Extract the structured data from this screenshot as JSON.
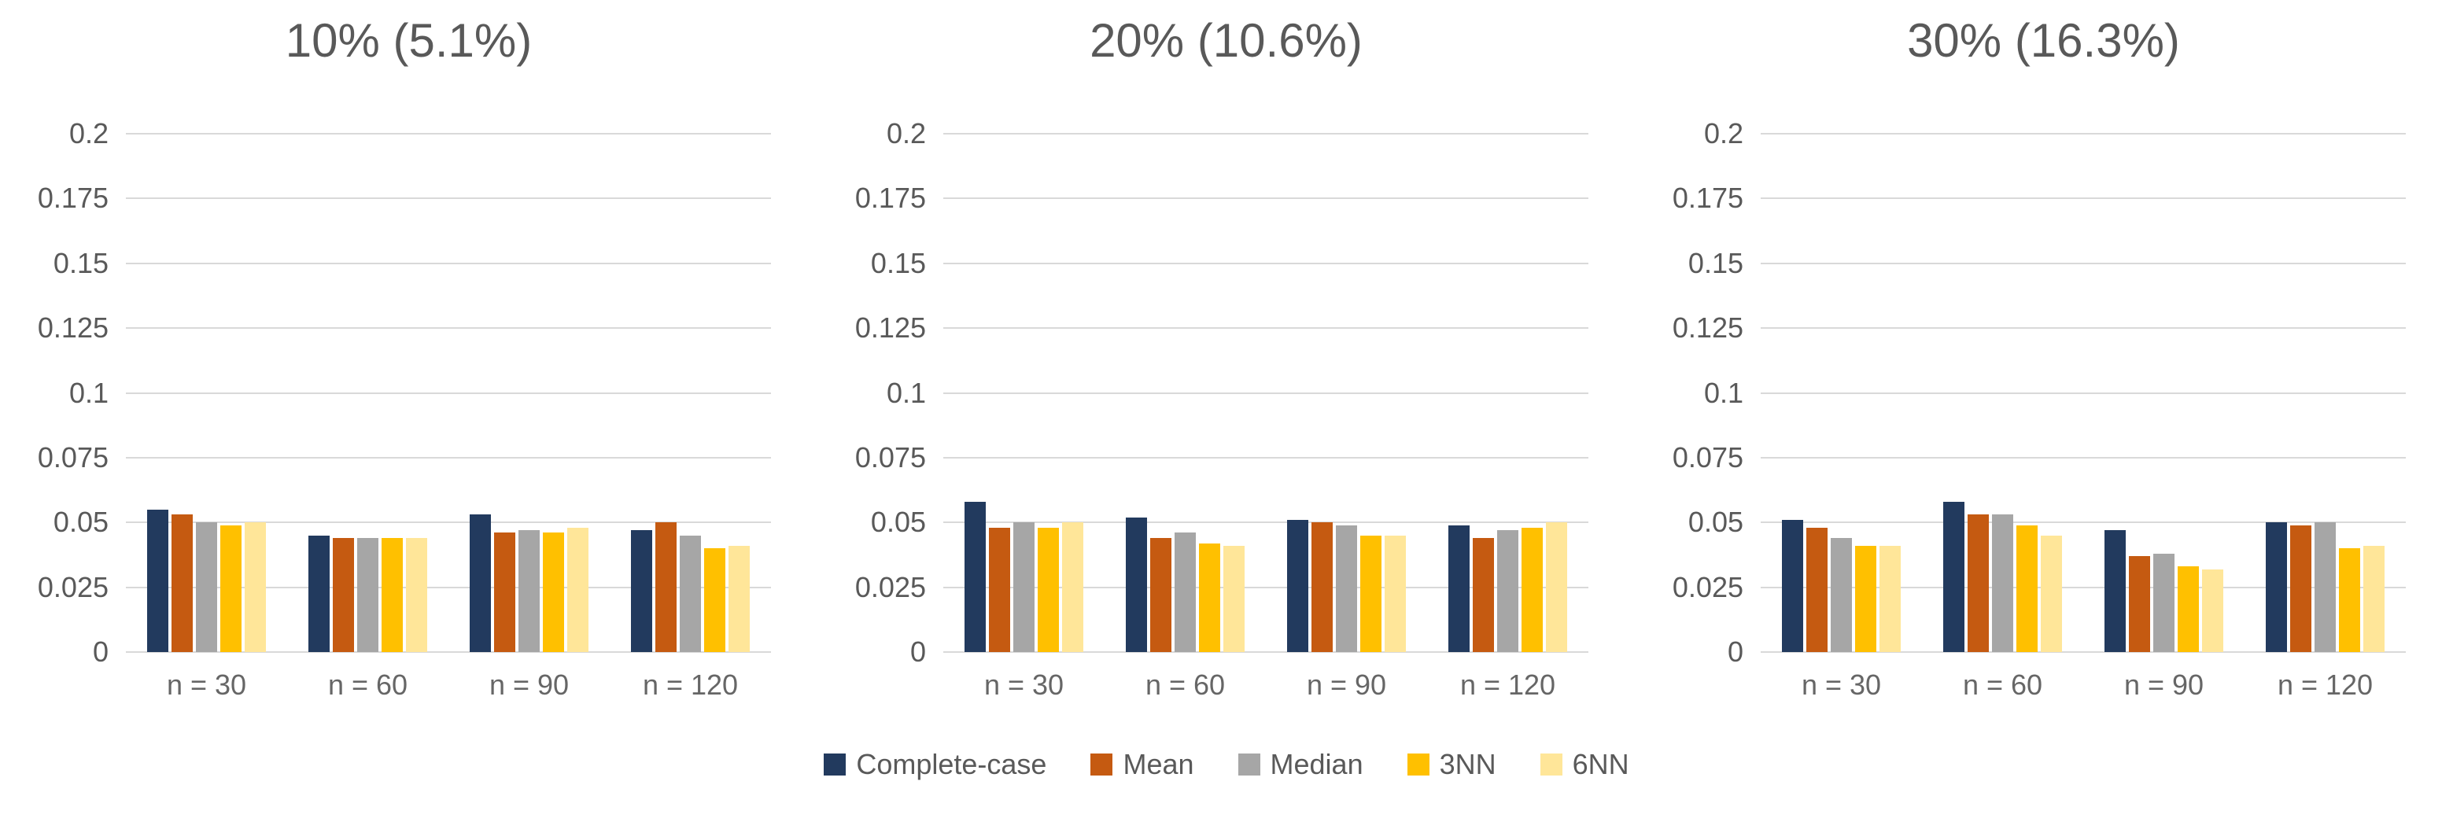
{
  "colors": {
    "gridline": "#D9D9D9",
    "axis_text": "#595959",
    "category_text": "#666666"
  },
  "axis": {
    "y_ticks": [
      {
        "label": "0.2",
        "value": 0.2
      },
      {
        "label": "0.175",
        "value": 0.175
      },
      {
        "label": "0.15",
        "value": 0.15
      },
      {
        "label": "0.125",
        "value": 0.125
      },
      {
        "label": "0.1",
        "value": 0.1
      },
      {
        "label": "0.075",
        "value": 0.075
      },
      {
        "label": "0.05",
        "value": 0.05
      },
      {
        "label": "0.025",
        "value": 0.025
      },
      {
        "label": "0",
        "value": 0
      }
    ],
    "y_max": 0.2,
    "categories": [
      "n = 30",
      "n = 60",
      "n = 90",
      "n = 120"
    ]
  },
  "series_meta": [
    {
      "name": "Complete-case",
      "color": "#223A5E"
    },
    {
      "name": "Mean",
      "color": "#C55A11"
    },
    {
      "name": "Median",
      "color": "#A6A6A6"
    },
    {
      "name": "3NN",
      "color": "#FFC000"
    },
    {
      "name": "6NN",
      "color": "#FFE699"
    }
  ],
  "legend": {
    "position": "bottom-center",
    "labels": [
      "Complete-case",
      "Mean",
      "Median",
      "3NN",
      "6NN"
    ]
  },
  "chart_data": [
    {
      "type": "bar",
      "title": "10% (5.1%)",
      "categories": [
        "n = 30",
        "n = 60",
        "n = 90",
        "n = 120"
      ],
      "ylim": [
        0,
        0.2
      ],
      "grid": true,
      "series": [
        {
          "name": "Complete-case",
          "values": [
            0.055,
            0.045,
            0.053,
            0.047
          ]
        },
        {
          "name": "Mean",
          "values": [
            0.053,
            0.044,
            0.046,
            0.05
          ]
        },
        {
          "name": "Median",
          "values": [
            0.05,
            0.044,
            0.047,
            0.045
          ]
        },
        {
          "name": "3NN",
          "values": [
            0.049,
            0.044,
            0.046,
            0.04
          ]
        },
        {
          "name": "6NN",
          "values": [
            0.05,
            0.044,
            0.048,
            0.041
          ]
        }
      ]
    },
    {
      "type": "bar",
      "title": "20% (10.6%)",
      "categories": [
        "n = 30",
        "n = 60",
        "n = 90",
        "n = 120"
      ],
      "ylim": [
        0,
        0.2
      ],
      "grid": true,
      "series": [
        {
          "name": "Complete-case",
          "values": [
            0.058,
            0.052,
            0.051,
            0.049
          ]
        },
        {
          "name": "Mean",
          "values": [
            0.048,
            0.044,
            0.05,
            0.044
          ]
        },
        {
          "name": "Median",
          "values": [
            0.05,
            0.046,
            0.049,
            0.047
          ]
        },
        {
          "name": "3NN",
          "values": [
            0.048,
            0.042,
            0.045,
            0.048
          ]
        },
        {
          "name": "6NN",
          "values": [
            0.05,
            0.041,
            0.045,
            0.05
          ]
        }
      ]
    },
    {
      "type": "bar",
      "title": "30% (16.3%)",
      "categories": [
        "n = 30",
        "n = 60",
        "n = 90",
        "n = 120"
      ],
      "ylim": [
        0,
        0.2
      ],
      "grid": true,
      "series": [
        {
          "name": "Complete-case",
          "values": [
            0.051,
            0.058,
            0.047,
            0.05
          ]
        },
        {
          "name": "Mean",
          "values": [
            0.048,
            0.053,
            0.037,
            0.049
          ]
        },
        {
          "name": "Median",
          "values": [
            0.044,
            0.053,
            0.038,
            0.05
          ]
        },
        {
          "name": "3NN",
          "values": [
            0.041,
            0.049,
            0.033,
            0.04
          ]
        },
        {
          "name": "6NN",
          "values": [
            0.041,
            0.045,
            0.032,
            0.041
          ]
        }
      ]
    }
  ]
}
